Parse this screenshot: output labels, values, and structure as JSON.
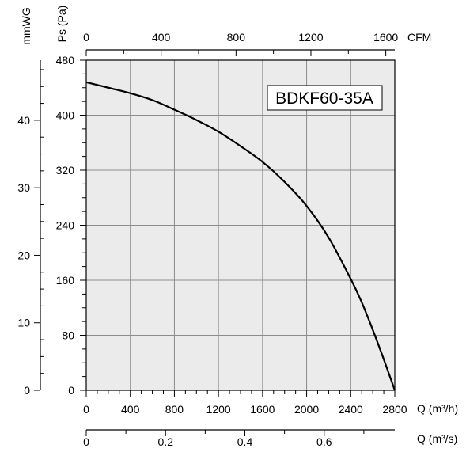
{
  "chart_data": {
    "type": "line",
    "model_label": "BDKF60-35A",
    "pressure_axis": {
      "label": "Ps (Pa)",
      "ticks": [
        0,
        80,
        160,
        240,
        320,
        400,
        480
      ],
      "ylim": [
        0,
        480
      ]
    },
    "mmwg_axis": {
      "label": "mmWG",
      "ticks": [
        0,
        10,
        20,
        30,
        40
      ],
      "ylim": [
        0,
        48.9
      ]
    },
    "flow_m3h_axis": {
      "label": "Q (m³/h)",
      "ticks": [
        0,
        400,
        800,
        1200,
        1600,
        2000,
        2400,
        2800
      ],
      "xlim": [
        0,
        2800
      ]
    },
    "cfm_axis": {
      "label": "CFM",
      "ticks": [
        0,
        400,
        800,
        1200,
        1600
      ],
      "xlim": [
        0,
        1648
      ]
    },
    "flow_m3s_axis": {
      "label": "Q (m³/s)",
      "ticks": [
        0,
        0.2,
        0.4,
        0.6
      ],
      "xlim": [
        0,
        0.778
      ]
    },
    "grid": true,
    "series": [
      {
        "x": [
          0,
          200,
          400,
          600,
          800,
          1000,
          1200,
          1400,
          1600,
          1800,
          2000,
          2200,
          2400,
          2500,
          2600,
          2700,
          2800
        ],
        "y": [
          448,
          440,
          432,
          422,
          408,
          393,
          376,
          355,
          332,
          303,
          268,
          222,
          162,
          128,
          88,
          45,
          0
        ]
      }
    ]
  }
}
